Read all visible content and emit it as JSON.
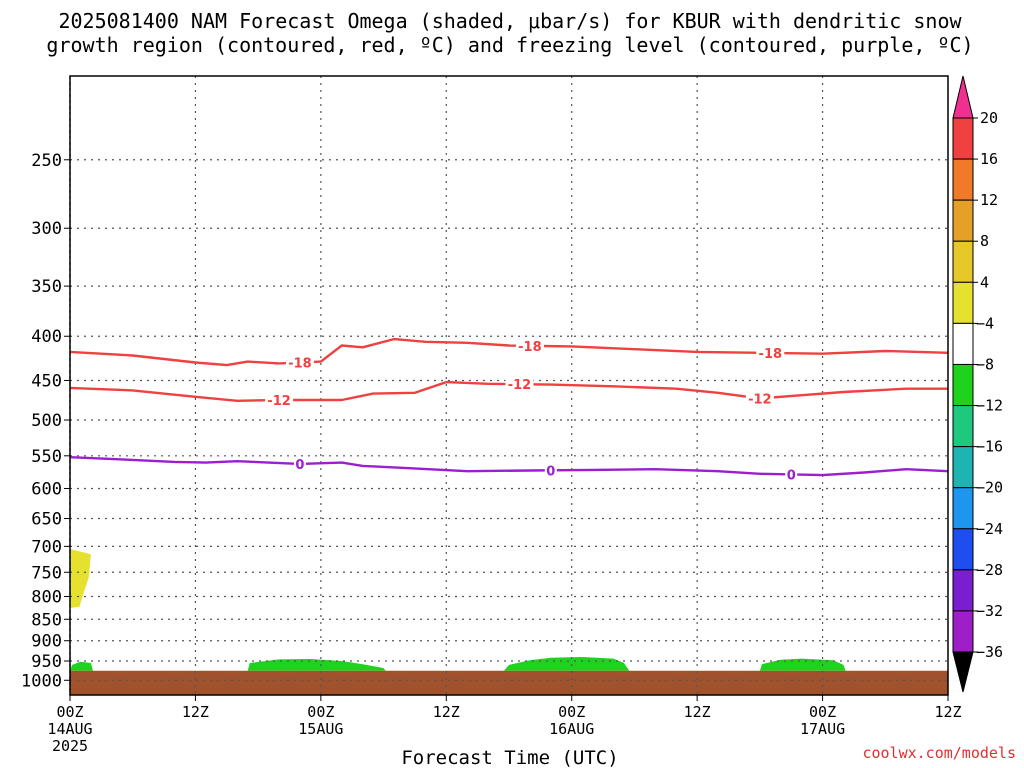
{
  "chart_data": {
    "type": "time-height",
    "title_lines": [
      "2025081400 NAM Forecast Omega (shaded, μbar/s) for KBUR with dendritic snow",
      "growth region (contoured, red, ºC) and freezing level (contoured, purple, ºC)"
    ],
    "xlabel": "Forecast Time (UTC)",
    "credit": "coolwx.com/models",
    "x_hours_range": [
      0,
      84
    ],
    "y_log_scale": true,
    "y_range_hpa": [
      1040,
      200
    ],
    "y_ticks": [
      250,
      300,
      350,
      400,
      450,
      500,
      550,
      600,
      650,
      700,
      750,
      800,
      850,
      900,
      950,
      1000
    ],
    "x_ticks": [
      {
        "hour": 0,
        "line1": "00Z",
        "line2": "14AUG",
        "line3": "2025"
      },
      {
        "hour": 12,
        "line1": "12Z",
        "line2": "",
        "line3": ""
      },
      {
        "hour": 24,
        "line1": "00Z",
        "line2": "15AUG",
        "line3": ""
      },
      {
        "hour": 36,
        "line1": "12Z",
        "line2": "",
        "line3": ""
      },
      {
        "hour": 48,
        "line1": "00Z",
        "line2": "16AUG",
        "line3": ""
      },
      {
        "hour": 60,
        "line1": "12Z",
        "line2": "",
        "line3": ""
      },
      {
        "hour": 72,
        "line1": "00Z",
        "line2": "17AUG",
        "line3": ""
      },
      {
        "hour": 84,
        "line1": "12Z",
        "line2": "",
        "line3": ""
      }
    ],
    "grid": true,
    "ground": {
      "top_hpa": 975,
      "color": "#a0522d"
    },
    "contours": [
      {
        "label": "-18",
        "color": "#f04040",
        "label_hours": [
          22,
          44,
          67
        ],
        "points": [
          [
            0,
            417
          ],
          [
            6,
            421
          ],
          [
            12,
            429
          ],
          [
            15,
            432
          ],
          [
            17,
            428
          ],
          [
            20,
            430
          ],
          [
            24,
            428
          ],
          [
            26,
            410
          ],
          [
            28,
            412
          ],
          [
            31,
            403
          ],
          [
            34,
            406
          ],
          [
            38,
            407
          ],
          [
            42,
            410
          ],
          [
            48,
            411
          ],
          [
            54,
            414
          ],
          [
            60,
            417
          ],
          [
            66,
            418
          ],
          [
            72,
            419
          ],
          [
            78,
            416
          ],
          [
            84,
            418
          ]
        ]
      },
      {
        "label": "-12",
        "color": "#f04040",
        "label_hours": [
          20,
          43,
          66
        ],
        "points": [
          [
            0,
            459
          ],
          [
            6,
            462
          ],
          [
            12,
            470
          ],
          [
            16,
            475
          ],
          [
            20,
            474
          ],
          [
            26,
            474
          ],
          [
            29,
            466
          ],
          [
            33,
            465
          ],
          [
            36,
            452
          ],
          [
            40,
            454
          ],
          [
            46,
            455
          ],
          [
            52,
            457
          ],
          [
            58,
            460
          ],
          [
            62,
            465
          ],
          [
            66,
            472
          ],
          [
            70,
            468
          ],
          [
            74,
            464
          ],
          [
            80,
            460
          ],
          [
            84,
            460
          ]
        ]
      },
      {
        "label": "0",
        "color": "#9b1fd1",
        "label_hours": [
          22,
          46,
          69
        ],
        "points": [
          [
            0,
            552
          ],
          [
            6,
            556
          ],
          [
            10,
            559
          ],
          [
            13,
            560
          ],
          [
            16,
            558
          ],
          [
            22,
            562
          ],
          [
            26,
            560
          ],
          [
            28,
            565
          ],
          [
            32,
            568
          ],
          [
            38,
            573
          ],
          [
            44,
            572
          ],
          [
            50,
            571
          ],
          [
            56,
            570
          ],
          [
            62,
            573
          ],
          [
            66,
            577
          ],
          [
            72,
            579
          ],
          [
            76,
            575
          ],
          [
            80,
            570
          ],
          [
            84,
            573
          ]
        ]
      }
    ],
    "shaded_regions": [
      {
        "value_range": [
          4,
          8
        ],
        "color": "#e6e02e",
        "points": [
          [
            0,
            705
          ],
          [
            2,
            715
          ],
          [
            1.8,
            760
          ],
          [
            1.2,
            800
          ],
          [
            0.9,
            822
          ],
          [
            0,
            825
          ]
        ]
      },
      {
        "value_range": [
          -8,
          -4
        ],
        "color": "#1ed21e",
        "points": [
          [
            0,
            975
          ],
          [
            0.2,
            960
          ],
          [
            1,
            952
          ],
          [
            2,
            955
          ],
          [
            2.2,
            975
          ]
        ]
      },
      {
        "value_range": [
          -8,
          -4
        ],
        "color": "#1ed21e",
        "points": [
          [
            17,
            975
          ],
          [
            17.2,
            955
          ],
          [
            20,
            946
          ],
          [
            23,
            945
          ],
          [
            26,
            950
          ],
          [
            28,
            958
          ],
          [
            30,
            968
          ],
          [
            30.2,
            975
          ]
        ]
      },
      {
        "value_range": [
          -8,
          -4
        ],
        "color": "#1ed21e",
        "points": [
          [
            41.5,
            975
          ],
          [
            42,
            960
          ],
          [
            44,
            948
          ],
          [
            46,
            942
          ],
          [
            49,
            940
          ],
          [
            52,
            944
          ],
          [
            53,
            955
          ],
          [
            53.5,
            975
          ]
        ]
      },
      {
        "value_range": [
          -8,
          -4
        ],
        "color": "#1ed21e",
        "points": [
          [
            66,
            975
          ],
          [
            66.2,
            958
          ],
          [
            68,
            947
          ],
          [
            70,
            944
          ],
          [
            73,
            948
          ],
          [
            74,
            960
          ],
          [
            74.2,
            975
          ]
        ]
      }
    ],
    "colorbar": {
      "values": [
        20,
        16,
        12,
        8,
        4,
        -4,
        -8,
        -12,
        -16,
        -20,
        -24,
        -28,
        -32,
        -36
      ],
      "colors": [
        "#f03090",
        "#f04040",
        "#f07a28",
        "#e6a028",
        "#e6c828",
        "#e6e02e",
        "#ffffff",
        "#1ed21e",
        "#1ec87c",
        "#1eb4b4",
        "#1e96f0",
        "#1e4ef0",
        "#7a1ed2",
        "#a01ec8",
        "#a0a0a0",
        "#000000"
      ]
    }
  }
}
